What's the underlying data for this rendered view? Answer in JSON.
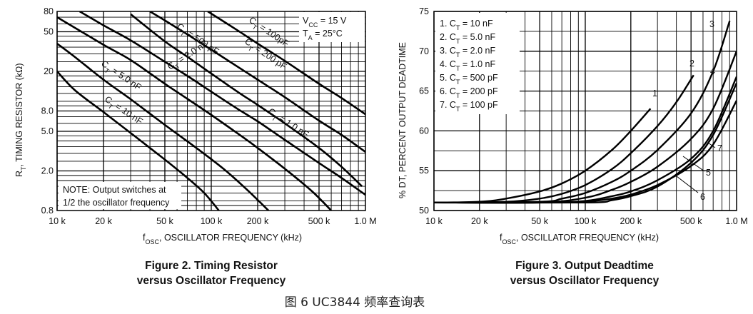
{
  "bottom_caption": "图 6 UC3844 频率查询表",
  "chart_data": [
    {
      "type": "line",
      "title": "Figure 2. Timing Resistor",
      "title_line2": "versus Oscillator Frequency",
      "xlabel": "f",
      "xlabel_sub": "OSC",
      "xlabel_rest": ", OSCILLATOR FREQUENCY (kHz)",
      "ylabel": "R",
      "ylabel_sub": "T",
      "ylabel_rest": ", TIMING RESISTOR (kΩ)",
      "x_scale": "log",
      "y_scale": "log",
      "xlim": [
        10,
        1000
      ],
      "ylim": [
        0.8,
        80
      ],
      "x_ticks": [
        {
          "value": 10,
          "label": "10 k"
        },
        {
          "value": 20,
          "label": "20 k"
        },
        {
          "value": 50,
          "label": "50 k"
        },
        {
          "value": 100,
          "label": "100 k"
        },
        {
          "value": 200,
          "label": "200 k"
        },
        {
          "value": 500,
          "label": "500 k"
        },
        {
          "value": 1000,
          "label": "1.0 M"
        }
      ],
      "y_ticks": [
        {
          "value": 0.8,
          "label": "0.8"
        },
        {
          "value": 2,
          "label": "2.0"
        },
        {
          "value": 5,
          "label": "5.0"
        },
        {
          "value": 8,
          "label": "8.0"
        },
        {
          "value": 20,
          "label": "20"
        },
        {
          "value": 50,
          "label": "50"
        },
        {
          "value": 80,
          "label": "80"
        }
      ],
      "conditions": [
        {
          "main": "V",
          "sub": "CC",
          "rest": " = 15 V"
        },
        {
          "main": "T",
          "sub": "A",
          "rest": " = 25°C"
        }
      ],
      "note": [
        "NOTE: Output switches at",
        "1/2 the oscillator frequency"
      ],
      "grid": true,
      "series": [
        {
          "label_main": "C",
          "label_sub": "T",
          "label_rest": " = 10 nF",
          "x": [
            10,
            13,
            20,
            30,
            50,
            70,
            90,
            112
          ],
          "y": [
            20,
            13,
            7.8,
            4.8,
            2.6,
            1.7,
            1.2,
            0.8
          ]
        },
        {
          "label_main": "C",
          "label_sub": "T",
          "label_rest": " = 5.0 nF",
          "x": [
            10,
            13,
            20,
            30,
            50,
            80,
            120,
            170,
            235
          ],
          "y": [
            38,
            28,
            16.5,
            10.5,
            5.8,
            3.4,
            2.1,
            1.3,
            0.8
          ]
        },
        {
          "label_main": "C",
          "label_sub": "T",
          "label_rest": " = 2.0 nF",
          "x": [
            10,
            20,
            30,
            50,
            70,
            100,
            150,
            200,
            300,
            450,
            600
          ],
          "y": [
            70,
            37,
            26,
            15,
            10.6,
            7.3,
            4.7,
            3.4,
            2.1,
            1.25,
            0.8
          ]
        },
        {
          "label_main": "C",
          "label_sub": "T",
          "label_rest": " = 1.0 nF",
          "x": [
            30,
            50,
            70,
            100,
            150,
            200,
            300,
            500,
            700,
            950
          ],
          "y": [
            75,
            40,
            28,
            19,
            12.3,
            9.2,
            6,
            3.4,
            2.2,
            1.4
          ]
        },
        {
          "label_main": "C",
          "label_sub": "T",
          "label_rest": " = 500 pF",
          "x": [
            14,
            20,
            30,
            50,
            70,
            100,
            150,
            200,
            300,
            500,
            700,
            1000
          ],
          "y": [
            80,
            58,
            41,
            25,
            18,
            12.5,
            8.3,
            6.3,
            4.1,
            2.4,
            1.7,
            1.15
          ]
        },
        {
          "label_main": "C",
          "label_sub": "T",
          "label_rest": " = 200 pF",
          "x": [
            40,
            50,
            70,
            100,
            150,
            200,
            300,
            500,
            700,
            1000
          ],
          "y": [
            80,
            65,
            47,
            33,
            22,
            16.5,
            11,
            6.4,
            4.6,
            3.1
          ]
        },
        {
          "label_main": "C",
          "label_sub": "T",
          "label_rest": " = 100pF",
          "x": [
            95,
            100,
            150,
            200,
            300,
            500,
            700,
            1000
          ],
          "y": [
            80,
            76,
            51,
            38,
            25.5,
            15,
            10.8,
            7.4
          ]
        }
      ]
    },
    {
      "type": "line",
      "title": "Figure 3. Output Deadtime",
      "title_line2": "versus Oscillator Frequency",
      "xlabel": "f",
      "xlabel_sub": "OSC",
      "xlabel_rest": ", OSCILLATOR FREQUENCY (kHz)",
      "ylabel": "% DT, PERCENT OUTPUT DEADTIME",
      "x_scale": "log",
      "xlim": [
        10,
        1000
      ],
      "ylim": [
        50,
        75
      ],
      "x_ticks": [
        {
          "value": 10,
          "label": "10 k"
        },
        {
          "value": 20,
          "label": "20 k"
        },
        {
          "value": 50,
          "label": "50 k"
        },
        {
          "value": 100,
          "label": "100 k"
        },
        {
          "value": 200,
          "label": "200 k"
        },
        {
          "value": 500,
          "label": "500 k"
        },
        {
          "value": 1000,
          "label": "1.0 M"
        }
      ],
      "y_ticks": [
        {
          "value": 50,
          "label": "50"
        },
        {
          "value": 55,
          "label": "55"
        },
        {
          "value": 60,
          "label": "60"
        },
        {
          "value": 65,
          "label": "65"
        },
        {
          "value": 70,
          "label": "70"
        },
        {
          "value": 75,
          "label": "75"
        }
      ],
      "legend": [
        {
          "num": "1.",
          "main": "C",
          "sub": "T",
          "rest": " = 10 nF"
        },
        {
          "num": "2.",
          "main": "C",
          "sub": "T",
          "rest": " = 5.0 nF"
        },
        {
          "num": "3.",
          "main": "C",
          "sub": "T",
          "rest": " = 2.0 nF"
        },
        {
          "num": "4.",
          "main": "C",
          "sub": "T",
          "rest": " = 1.0 nF"
        },
        {
          "num": "5.",
          "main": "C",
          "sub": "T",
          "rest": " = 500 pF"
        },
        {
          "num": "6.",
          "main": "C",
          "sub": "T",
          "rest": " = 200 pF"
        },
        {
          "num": "7.",
          "main": "C",
          "sub": "T",
          "rest": " = 100 pF"
        }
      ],
      "grid": true,
      "series": [
        {
          "name": "1",
          "x": [
            10,
            20,
            30,
            50,
            70,
            100,
            150,
            200,
            270
          ],
          "y": [
            51,
            51.1,
            51.5,
            52.4,
            53.4,
            55,
            57.6,
            60,
            62.8
          ]
        },
        {
          "name": "2",
          "x": [
            10,
            30,
            50,
            70,
            100,
            150,
            200,
            300,
            400,
            520
          ],
          "y": [
            51,
            51.1,
            51.5,
            52.1,
            53.2,
            55.2,
            57.2,
            60.6,
            63.6,
            67
          ]
        },
        {
          "name": "3",
          "x": [
            10,
            50,
            70,
            100,
            150,
            200,
            300,
            500,
            700,
            900
          ],
          "y": [
            51,
            51.1,
            51.5,
            52.2,
            53.6,
            55,
            57.6,
            62.2,
            67.5,
            73.8
          ]
        },
        {
          "name": "4",
          "x": [
            10,
            50,
            100,
            150,
            200,
            300,
            500,
            700,
            1000
          ],
          "y": [
            51,
            51,
            51.6,
            52.6,
            53.6,
            55.5,
            59,
            62.8,
            70
          ]
        },
        {
          "name": "5",
          "x": [
            10,
            50,
            100,
            150,
            200,
            300,
            500,
            700,
            1000
          ],
          "y": [
            51,
            51,
            51.2,
            51.8,
            52.4,
            53.8,
            56.5,
            60,
            66.8
          ]
        },
        {
          "name": "6",
          "x": [
            10,
            70,
            100,
            150,
            200,
            300,
            500,
            700,
            1000
          ],
          "y": [
            51,
            51,
            51.1,
            51.5,
            52,
            53.2,
            55.6,
            58.3,
            63.8
          ]
        },
        {
          "name": "7",
          "x": [
            10,
            100,
            150,
            200,
            300,
            500,
            700,
            1000
          ],
          "y": [
            51,
            51,
            51.3,
            51.8,
            53,
            56,
            59.5,
            66
          ]
        }
      ],
      "curve_labels": [
        "1",
        "2",
        "3",
        "4",
        "5",
        "6",
        "7"
      ]
    }
  ]
}
